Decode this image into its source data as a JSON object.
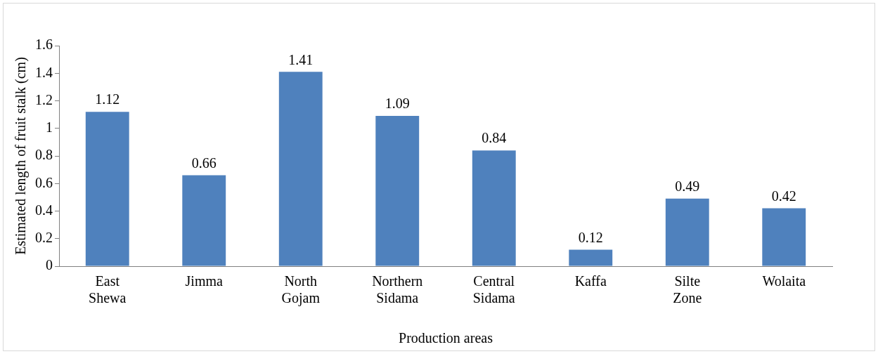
{
  "chart_data": {
    "type": "bar",
    "xlabel": "Production areas",
    "ylabel": "Estimated length of fruit stalk (cm)",
    "categories": [
      "East Shewa",
      "Jimma",
      "North Gojam",
      "Northern Sidama",
      "Central Sidama",
      "Kaffa",
      "Silte Zone",
      "Wolaita"
    ],
    "values": [
      1.12,
      0.66,
      1.41,
      1.09,
      0.84,
      0.12,
      0.49,
      0.42
    ],
    "color": "#4f81bd",
    "ylim": [
      0,
      1.6
    ],
    "yticks": [
      0,
      0.2,
      0.4,
      0.6,
      0.8,
      1,
      1.2,
      1.4,
      1.6
    ],
    "data_labels": true,
    "grid": false,
    "legend": false
  }
}
